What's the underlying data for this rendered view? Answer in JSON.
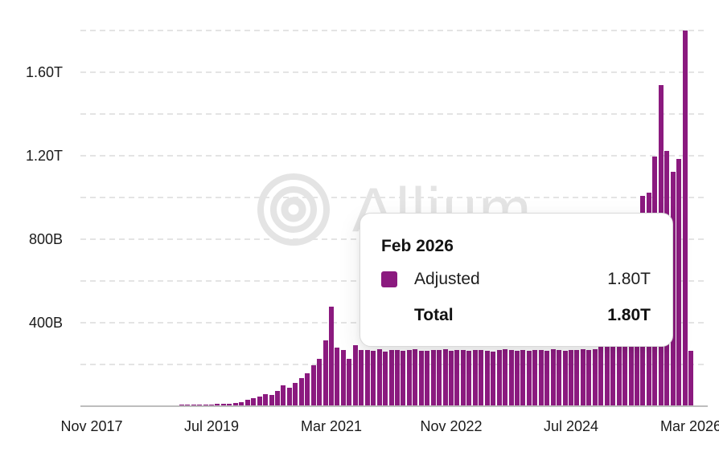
{
  "chart_data": {
    "type": "bar",
    "title": "",
    "series": [
      {
        "name": "Adjusted",
        "color": "#8B1A7F"
      }
    ],
    "time_range": {
      "start": "Nov 2017",
      "end": "Mar 2026",
      "interval": "monthly"
    },
    "values_billions": [
      1,
      1,
      1,
      1,
      2,
      2,
      2,
      2,
      3,
      3,
      3,
      4,
      4,
      5,
      5,
      6,
      6,
      7,
      8,
      8,
      9,
      10,
      10,
      11,
      15,
      20,
      30,
      38,
      46,
      59,
      54,
      74,
      100,
      88,
      110,
      133,
      159,
      196,
      227,
      314,
      477,
      280,
      269,
      226,
      292,
      268,
      270,
      265,
      272,
      262,
      268,
      271,
      266,
      269,
      273,
      267,
      265,
      270,
      268,
      272,
      266,
      269,
      271,
      264,
      268,
      270,
      267,
      262,
      269,
      272,
      268,
      265,
      270,
      267,
      271,
      268,
      266,
      272,
      269,
      265,
      270,
      268,
      273,
      270,
      275,
      320,
      380,
      450,
      530,
      620,
      720,
      850,
      1008,
      1023,
      1196,
      1540,
      1225,
      1123,
      1186,
      1800,
      265
    ],
    "x_tick_labels": [
      "Nov 2017",
      "Jul 2019",
      "Mar 2021",
      "Nov 2022",
      "Jul 2024",
      "Mar 2026"
    ],
    "x_tick_indices": [
      0,
      20,
      40,
      60,
      80,
      100
    ],
    "y_tick_labels": [
      "400B",
      "800B",
      "1.20T",
      "1.60T"
    ],
    "y_tick_values_billions": [
      400,
      800,
      1200,
      1600
    ],
    "y_gridline_step_billions": 200,
    "ylim_billions": [
      0,
      1870
    ],
    "grid_on": true,
    "legend_position": "none",
    "bar_color": "#8B1A7F"
  },
  "tooltip": {
    "month": "Feb 2026",
    "series_label": "Adjusted",
    "series_value": "1.80T",
    "total_label": "Total",
    "total_value": "1.80T",
    "swatch_color": "#8B1A7F"
  },
  "watermark": {
    "text": "Allium"
  },
  "colors": {
    "bar": "#8B1A7F",
    "gridline": "#e4e4e4",
    "axis_line": "#bdbdbd",
    "axis_text": "#1b1b1b",
    "watermark": "#e4e4e4",
    "tooltip_border": "#d9d9d9"
  }
}
